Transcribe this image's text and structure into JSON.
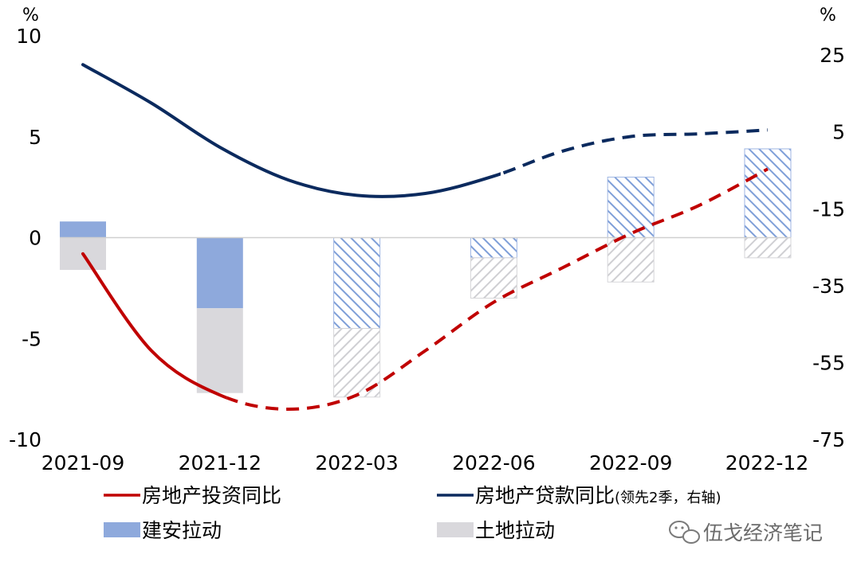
{
  "chart_data": {
    "type": "bar+line",
    "categories": [
      "2021-09",
      "2021-12",
      "2022-03",
      "2022-06",
      "2022-09",
      "2022-12"
    ],
    "left_axis": {
      "unit": "%",
      "range": [
        -10,
        10
      ],
      "ticks": [
        "10",
        "5",
        "0",
        "-5",
        "-10"
      ]
    },
    "right_axis": {
      "unit": "%",
      "range": [
        -75,
        30
      ],
      "ticks": [
        "25",
        "5",
        "-15",
        "-35",
        "-55",
        "-75"
      ]
    },
    "series": [
      {
        "name": "建安拉动",
        "kind": "bar",
        "axis": "left",
        "color": "#8ea9dc",
        "values": [
          0.8,
          -3.5,
          -4.5,
          -1.0,
          3.0,
          4.4
        ],
        "forecast_from_index": 2
      },
      {
        "name": "土地拉动",
        "kind": "bar",
        "axis": "left",
        "color": "#d9d8dc",
        "values": [
          -1.6,
          -4.2,
          -3.4,
          -2.0,
          -2.2,
          -1.0
        ],
        "forecast_from_index": 2
      },
      {
        "name": "房地产投资同比",
        "kind": "line",
        "axis": "left",
        "color": "#c00000",
        "x": [
          0.0,
          0.5,
          1.0,
          1.5,
          2.0,
          2.5,
          3.0,
          3.5,
          4.0,
          4.5,
          5.0
        ],
        "values": [
          -0.8,
          -5.6,
          -7.8,
          -8.5,
          -7.8,
          -5.6,
          -3.2,
          -1.5,
          0.2,
          1.6,
          3.4
        ],
        "dashed_from_x": 1.05
      },
      {
        "name": "房地产贷款同比",
        "name_note": "(领先2季，右轴)",
        "kind": "line",
        "axis": "right",
        "color": "#0b2a5e",
        "x": [
          0.0,
          0.5,
          1.0,
          1.5,
          2.0,
          2.5,
          3.0,
          3.5,
          4.0,
          4.5,
          5.0
        ],
        "values": [
          22.5,
          12.5,
          1.0,
          -7.5,
          -11.5,
          -11.0,
          -6.5,
          0.0,
          3.8,
          4.5,
          5.5
        ],
        "dashed_from_x": 3.05
      }
    ],
    "legend": {
      "placement": "bottom"
    },
    "grid": false
  },
  "watermark": "伍戈经济笔记",
  "watermark_icon": "wechat-icon"
}
